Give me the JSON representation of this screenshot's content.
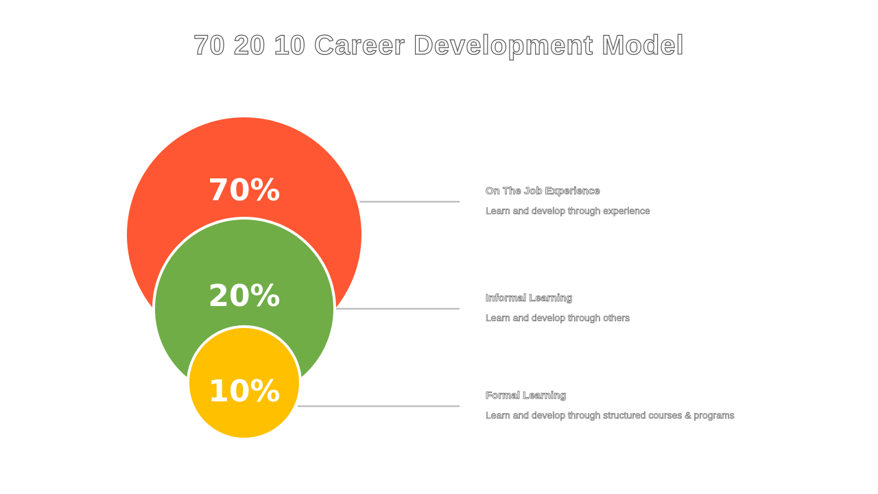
{
  "title": "70 20 10 Career Development Model",
  "colors": {
    "large": "#FF5733",
    "medium": "#70AD47",
    "small": "#FFC000",
    "connector": "#BFBFBF",
    "circle_border": "#FFFFFF"
  },
  "segments": [
    {
      "percent": "70%",
      "title": "On The Job Experience",
      "description": "Learn and develop through experience"
    },
    {
      "percent": "20%",
      "title": "Informal Learning",
      "description": "Learn and develop through others"
    },
    {
      "percent": "10%",
      "title": "Formal Learning",
      "description": "Learn and develop through structured courses & programs"
    }
  ]
}
